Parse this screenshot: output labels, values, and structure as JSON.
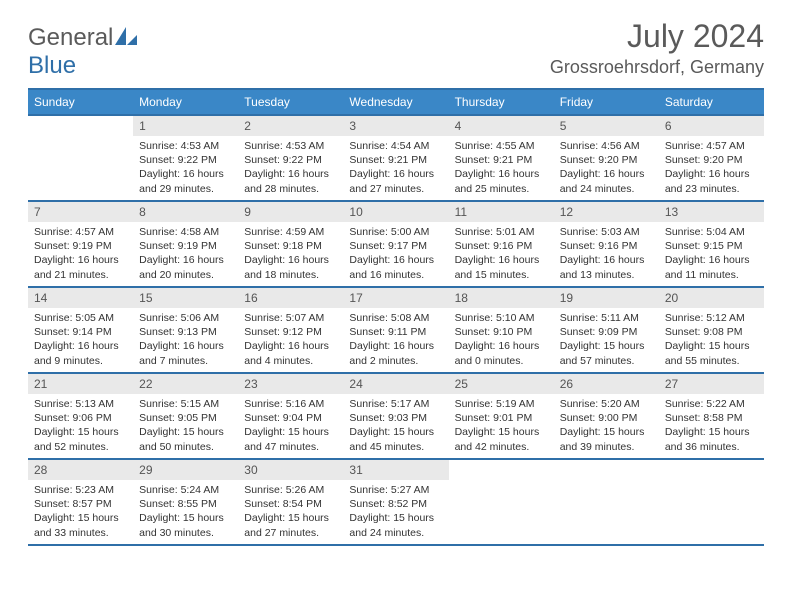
{
  "brand": {
    "general": "General",
    "blue": "Blue"
  },
  "title": "July 2024",
  "location": "Grossroehrsdorf, Germany",
  "columns": [
    "Sunday",
    "Monday",
    "Tuesday",
    "Wednesday",
    "Thursday",
    "Friday",
    "Saturday"
  ],
  "colors": {
    "header_band": "#3a87c7",
    "rule": "#2f6fa8",
    "daynum_bg": "#e9e9e9",
    "text": "#333333",
    "muted": "#5a5a5a",
    "background": "#ffffff"
  },
  "typography": {
    "month_title_pt": 24,
    "location_pt": 14,
    "column_header_pt": 9,
    "daynum_pt": 9,
    "body_pt": 8
  },
  "weeks": [
    [
      null,
      {
        "n": "1",
        "sr": "Sunrise: 4:53 AM",
        "ss": "Sunset: 9:22 PM",
        "d1": "Daylight: 16 hours",
        "d2": "and 29 minutes."
      },
      {
        "n": "2",
        "sr": "Sunrise: 4:53 AM",
        "ss": "Sunset: 9:22 PM",
        "d1": "Daylight: 16 hours",
        "d2": "and 28 minutes."
      },
      {
        "n": "3",
        "sr": "Sunrise: 4:54 AM",
        "ss": "Sunset: 9:21 PM",
        "d1": "Daylight: 16 hours",
        "d2": "and 27 minutes."
      },
      {
        "n": "4",
        "sr": "Sunrise: 4:55 AM",
        "ss": "Sunset: 9:21 PM",
        "d1": "Daylight: 16 hours",
        "d2": "and 25 minutes."
      },
      {
        "n": "5",
        "sr": "Sunrise: 4:56 AM",
        "ss": "Sunset: 9:20 PM",
        "d1": "Daylight: 16 hours",
        "d2": "and 24 minutes."
      },
      {
        "n": "6",
        "sr": "Sunrise: 4:57 AM",
        "ss": "Sunset: 9:20 PM",
        "d1": "Daylight: 16 hours",
        "d2": "and 23 minutes."
      }
    ],
    [
      {
        "n": "7",
        "sr": "Sunrise: 4:57 AM",
        "ss": "Sunset: 9:19 PM",
        "d1": "Daylight: 16 hours",
        "d2": "and 21 minutes."
      },
      {
        "n": "8",
        "sr": "Sunrise: 4:58 AM",
        "ss": "Sunset: 9:19 PM",
        "d1": "Daylight: 16 hours",
        "d2": "and 20 minutes."
      },
      {
        "n": "9",
        "sr": "Sunrise: 4:59 AM",
        "ss": "Sunset: 9:18 PM",
        "d1": "Daylight: 16 hours",
        "d2": "and 18 minutes."
      },
      {
        "n": "10",
        "sr": "Sunrise: 5:00 AM",
        "ss": "Sunset: 9:17 PM",
        "d1": "Daylight: 16 hours",
        "d2": "and 16 minutes."
      },
      {
        "n": "11",
        "sr": "Sunrise: 5:01 AM",
        "ss": "Sunset: 9:16 PM",
        "d1": "Daylight: 16 hours",
        "d2": "and 15 minutes."
      },
      {
        "n": "12",
        "sr": "Sunrise: 5:03 AM",
        "ss": "Sunset: 9:16 PM",
        "d1": "Daylight: 16 hours",
        "d2": "and 13 minutes."
      },
      {
        "n": "13",
        "sr": "Sunrise: 5:04 AM",
        "ss": "Sunset: 9:15 PM",
        "d1": "Daylight: 16 hours",
        "d2": "and 11 minutes."
      }
    ],
    [
      {
        "n": "14",
        "sr": "Sunrise: 5:05 AM",
        "ss": "Sunset: 9:14 PM",
        "d1": "Daylight: 16 hours",
        "d2": "and 9 minutes."
      },
      {
        "n": "15",
        "sr": "Sunrise: 5:06 AM",
        "ss": "Sunset: 9:13 PM",
        "d1": "Daylight: 16 hours",
        "d2": "and 7 minutes."
      },
      {
        "n": "16",
        "sr": "Sunrise: 5:07 AM",
        "ss": "Sunset: 9:12 PM",
        "d1": "Daylight: 16 hours",
        "d2": "and 4 minutes."
      },
      {
        "n": "17",
        "sr": "Sunrise: 5:08 AM",
        "ss": "Sunset: 9:11 PM",
        "d1": "Daylight: 16 hours",
        "d2": "and 2 minutes."
      },
      {
        "n": "18",
        "sr": "Sunrise: 5:10 AM",
        "ss": "Sunset: 9:10 PM",
        "d1": "Daylight: 16 hours",
        "d2": "and 0 minutes."
      },
      {
        "n": "19",
        "sr": "Sunrise: 5:11 AM",
        "ss": "Sunset: 9:09 PM",
        "d1": "Daylight: 15 hours",
        "d2": "and 57 minutes."
      },
      {
        "n": "20",
        "sr": "Sunrise: 5:12 AM",
        "ss": "Sunset: 9:08 PM",
        "d1": "Daylight: 15 hours",
        "d2": "and 55 minutes."
      }
    ],
    [
      {
        "n": "21",
        "sr": "Sunrise: 5:13 AM",
        "ss": "Sunset: 9:06 PM",
        "d1": "Daylight: 15 hours",
        "d2": "and 52 minutes."
      },
      {
        "n": "22",
        "sr": "Sunrise: 5:15 AM",
        "ss": "Sunset: 9:05 PM",
        "d1": "Daylight: 15 hours",
        "d2": "and 50 minutes."
      },
      {
        "n": "23",
        "sr": "Sunrise: 5:16 AM",
        "ss": "Sunset: 9:04 PM",
        "d1": "Daylight: 15 hours",
        "d2": "and 47 minutes."
      },
      {
        "n": "24",
        "sr": "Sunrise: 5:17 AM",
        "ss": "Sunset: 9:03 PM",
        "d1": "Daylight: 15 hours",
        "d2": "and 45 minutes."
      },
      {
        "n": "25",
        "sr": "Sunrise: 5:19 AM",
        "ss": "Sunset: 9:01 PM",
        "d1": "Daylight: 15 hours",
        "d2": "and 42 minutes."
      },
      {
        "n": "26",
        "sr": "Sunrise: 5:20 AM",
        "ss": "Sunset: 9:00 PM",
        "d1": "Daylight: 15 hours",
        "d2": "and 39 minutes."
      },
      {
        "n": "27",
        "sr": "Sunrise: 5:22 AM",
        "ss": "Sunset: 8:58 PM",
        "d1": "Daylight: 15 hours",
        "d2": "and 36 minutes."
      }
    ],
    [
      {
        "n": "28",
        "sr": "Sunrise: 5:23 AM",
        "ss": "Sunset: 8:57 PM",
        "d1": "Daylight: 15 hours",
        "d2": "and 33 minutes."
      },
      {
        "n": "29",
        "sr": "Sunrise: 5:24 AM",
        "ss": "Sunset: 8:55 PM",
        "d1": "Daylight: 15 hours",
        "d2": "and 30 minutes."
      },
      {
        "n": "30",
        "sr": "Sunrise: 5:26 AM",
        "ss": "Sunset: 8:54 PM",
        "d1": "Daylight: 15 hours",
        "d2": "and 27 minutes."
      },
      {
        "n": "31",
        "sr": "Sunrise: 5:27 AM",
        "ss": "Sunset: 8:52 PM",
        "d1": "Daylight: 15 hours",
        "d2": "and 24 minutes."
      },
      null,
      null,
      null
    ]
  ]
}
